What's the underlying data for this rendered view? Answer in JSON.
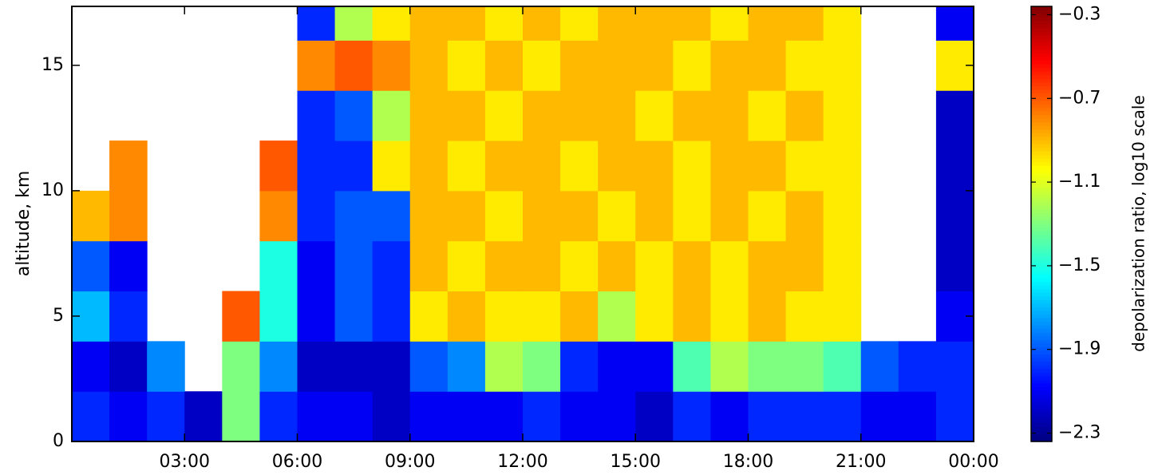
{
  "chart_data": {
    "type": "heatmap",
    "ylabel": "altitude, km",
    "colorbar_label": "depolarization ratio, log10 scale",
    "colormap": "jet",
    "clim": [
      -2.34,
      -0.26
    ],
    "cticks": [
      {
        "value": -0.3,
        "label": "−0.3"
      },
      {
        "value": -0.7,
        "label": "−0.7"
      },
      {
        "value": -1.1,
        "label": "−1.1"
      },
      {
        "value": -1.5,
        "label": "−1.5"
      },
      {
        "value": -1.9,
        "label": "−1.9"
      },
      {
        "value": -2.3,
        "label": "−2.3"
      }
    ],
    "xlim": [
      0,
      24
    ],
    "xticks": [
      {
        "value": 3,
        "label": "03:00"
      },
      {
        "value": 6,
        "label": "06:00"
      },
      {
        "value": 9,
        "label": "09:00"
      },
      {
        "value": 12,
        "label": "12:00"
      },
      {
        "value": 15,
        "label": "15:00"
      },
      {
        "value": 18,
        "label": "18:00"
      },
      {
        "value": 21,
        "label": "21:00"
      },
      {
        "value": 24,
        "label": "00:00"
      }
    ],
    "ylim": [
      0,
      17.35
    ],
    "yticks": [
      0,
      5,
      10,
      15
    ],
    "x_edges": [
      0,
      1,
      2,
      3,
      4,
      5,
      6,
      7,
      8,
      9,
      10,
      11,
      12,
      13,
      14,
      15,
      16,
      17,
      18,
      19,
      20,
      21,
      22,
      23,
      24
    ],
    "y_edges": [
      0,
      2,
      4,
      6,
      8,
      10,
      12,
      14,
      16,
      17.35
    ],
    "values": [
      [
        -2.0,
        -2.1,
        -2.0,
        -2.2,
        -1.3,
        -2.0,
        -2.1,
        -2.1,
        -2.2,
        -2.1,
        -2.1,
        -2.1,
        -2.0,
        -2.1,
        -2.1,
        -2.2,
        -2.0,
        -2.1,
        -2.0,
        -2.0,
        -2.0,
        -2.1,
        -2.1,
        -2.0
      ],
      [
        -2.1,
        -2.2,
        -1.8,
        null,
        -1.3,
        -1.8,
        -2.2,
        -2.2,
        -2.2,
        -1.9,
        -1.8,
        -1.2,
        -1.3,
        -2.0,
        -2.1,
        -2.1,
        -1.4,
        -1.2,
        -1.3,
        -1.3,
        -1.4,
        -1.9,
        -2.0,
        -2.0
      ],
      [
        -1.7,
        -2.0,
        null,
        null,
        -0.7,
        -1.5,
        -2.1,
        -1.9,
        -2.0,
        -1.0,
        -0.9,
        -1.0,
        -1.0,
        -0.9,
        -1.2,
        -1.0,
        -0.9,
        -1.0,
        -0.9,
        -1.0,
        -1.0,
        null,
        null,
        -2.1
      ],
      [
        -1.9,
        -2.1,
        null,
        null,
        null,
        -1.5,
        -2.1,
        -1.9,
        -2.0,
        -0.9,
        -1.0,
        -0.9,
        -0.9,
        -1.0,
        -0.9,
        -1.0,
        -0.9,
        -1.0,
        -0.9,
        -0.9,
        -1.0,
        null,
        null,
        -2.2
      ],
      [
        -0.9,
        -0.8,
        null,
        null,
        null,
        -0.8,
        -2.0,
        -1.9,
        -1.9,
        -0.9,
        -0.9,
        -1.0,
        -0.9,
        -0.9,
        -1.0,
        -0.9,
        -1.0,
        -0.9,
        -1.0,
        -0.9,
        -1.0,
        null,
        null,
        -2.2
      ],
      [
        null,
        -0.8,
        null,
        null,
        null,
        -0.7,
        -2.0,
        -2.0,
        -1.0,
        -0.9,
        -1.0,
        -0.9,
        -0.9,
        -1.0,
        -0.9,
        -0.9,
        -1.0,
        -0.9,
        -0.9,
        -1.0,
        -1.0,
        null,
        null,
        -2.2
      ],
      [
        null,
        null,
        null,
        null,
        null,
        null,
        -2.0,
        -1.9,
        -1.2,
        -0.9,
        -0.9,
        -1.0,
        -0.9,
        -0.9,
        -0.9,
        -1.0,
        -0.9,
        -0.9,
        -1.0,
        -0.9,
        -1.0,
        null,
        null,
        -2.2
      ],
      [
        null,
        null,
        null,
        null,
        null,
        null,
        -0.8,
        -0.7,
        -0.8,
        -0.9,
        -1.0,
        -0.9,
        -1.0,
        -0.9,
        -0.9,
        -0.9,
        -1.0,
        -0.9,
        -0.9,
        -1.0,
        -1.0,
        null,
        null,
        -1.0
      ],
      [
        null,
        null,
        null,
        null,
        null,
        null,
        -2.0,
        -1.2,
        -1.0,
        -0.9,
        -0.9,
        -1.0,
        -0.9,
        -1.0,
        -0.9,
        -0.9,
        -0.9,
        -1.0,
        -0.9,
        -0.9,
        -1.0,
        null,
        null,
        -2.1
      ]
    ]
  }
}
